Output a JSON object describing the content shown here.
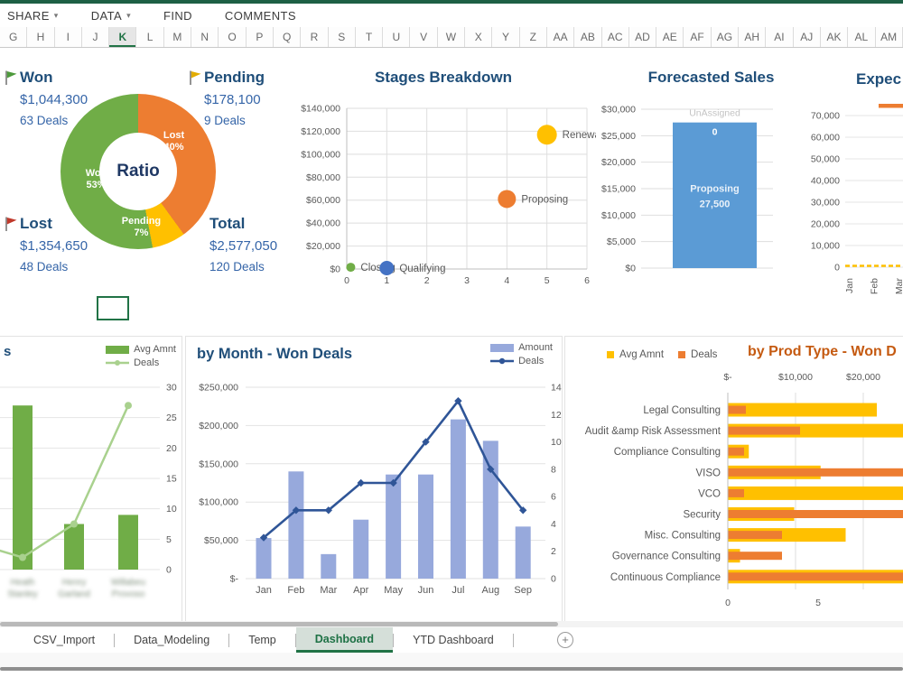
{
  "window": {
    "top_accent_color": "#1E6045"
  },
  "menu": {
    "items": [
      {
        "label": "SHARE",
        "has_dropdown": true
      },
      {
        "label": "DATA",
        "has_dropdown": true
      },
      {
        "label": "FIND",
        "has_dropdown": false
      },
      {
        "label": "COMMENTS",
        "has_dropdown": false
      }
    ]
  },
  "column_headers": {
    "letters": [
      "G",
      "H",
      "I",
      "J",
      "K",
      "L",
      "M",
      "N",
      "O",
      "P",
      "Q",
      "R",
      "S",
      "T",
      "U",
      "V",
      "W",
      "X",
      "Y",
      "Z",
      "AA",
      "AB",
      "AC",
      "AD",
      "AE",
      "AF",
      "AG",
      "AH",
      "AI",
      "AJ",
      "AK",
      "AL",
      "AM"
    ],
    "selected": "K"
  },
  "kpis": {
    "won": {
      "label": "Won",
      "amount": "$1,044,300",
      "deals": "63 Deals",
      "flag_color": "#4E9A3C"
    },
    "pending": {
      "label": "Pending",
      "amount": "$178,100",
      "deals": "9 Deals",
      "flag_color": "#E2AC00"
    },
    "lost": {
      "label": "Lost",
      "amount": "$1,354,650",
      "deals": "48 Deals",
      "flag_color": "#C0392B"
    },
    "total": {
      "label": "Total",
      "amount": "$2,577,050",
      "deals": "120 Deals"
    }
  },
  "chart_data": [
    {
      "name": "ratio-donut",
      "type": "pie",
      "title": "Ratio",
      "slices": [
        {
          "label": "Lost",
          "pct": 40,
          "color": "#ED7D31"
        },
        {
          "label": "Pending",
          "pct": 7,
          "color": "#FFC000"
        },
        {
          "label": "Won",
          "pct": 53,
          "color": "#70AD47"
        }
      ]
    },
    {
      "name": "stages-breakdown",
      "type": "scatter",
      "title": "Stages Breakdown",
      "xlim": [
        0,
        6
      ],
      "xticks": [
        0,
        1,
        2,
        3,
        4,
        5,
        6
      ],
      "ylim": [
        0,
        140000
      ],
      "ytick_step": 20000,
      "yticks": [
        "$0",
        "$20,000",
        "$40,000",
        "$60,000",
        "$80,000",
        "$100,000",
        "$120,000",
        "$140,000"
      ],
      "points": [
        {
          "label": "Closing",
          "x": 0.1,
          "y": 1500,
          "color": "#70AD47",
          "r": 5
        },
        {
          "label": "Qualifying",
          "x": 1,
          "y": 800,
          "color": "#4472C4",
          "r": 8
        },
        {
          "label": "Proposing",
          "x": 4,
          "y": 61000,
          "color": "#ED7D31",
          "r": 10
        },
        {
          "label": "Renewal",
          "x": 5,
          "y": 117000,
          "color": "#FFC000",
          "r": 11
        }
      ]
    },
    {
      "name": "forecasted-sales",
      "type": "stacked-bar",
      "title": "Forecasted Sales",
      "ylim": [
        0,
        30000
      ],
      "ytick_step": 5000,
      "yticks": [
        "$0",
        "$5,000",
        "$10,000",
        "$15,000",
        "$20,000",
        "$25,000",
        "$30,000"
      ],
      "segments": [
        {
          "label": "Proposing",
          "value": 27500,
          "value_label": "27,500",
          "color": "#5B9BD5"
        },
        {
          "label": "UnAssigned",
          "value": 0,
          "value_label": "0"
        }
      ]
    },
    {
      "name": "expected-sales",
      "type": "line",
      "title": "Expec",
      "ylim": [
        0,
        70000
      ],
      "ytick_step": 10000,
      "yticks": [
        "0",
        "10,000",
        "20,000",
        "30,000",
        "40,000",
        "50,000",
        "60,000",
        "70,000"
      ],
      "x_labels": [
        "Jan",
        "Feb",
        "Mar"
      ],
      "series": [
        {
          "name": "orange-series",
          "color": "#ED7D31"
        },
        {
          "name": "yellow-series",
          "color": "#FFC000",
          "dashed": true,
          "value_near": 500
        }
      ]
    },
    {
      "name": "by-rep-won-deals",
      "type": "bar-line",
      "title_fragment": "s",
      "legend": [
        {
          "label": "Avg Amnt",
          "color": "#70AD47",
          "kind": "bar"
        },
        {
          "label": "Deals",
          "color": "#A9D18E",
          "kind": "line"
        }
      ],
      "ylim": [
        0,
        30
      ],
      "yticks": [
        0,
        5,
        10,
        15,
        20,
        25,
        30
      ],
      "categories": [
        "Heath Stanley",
        "Henry Garland",
        "Willabeu Provoso"
      ],
      "categories_blurred": true,
      "bar_values": [
        27,
        7.5,
        9
      ],
      "line_values": [
        2,
        7.5,
        27
      ],
      "line_entry_value": 5
    },
    {
      "name": "by-month-won-deals",
      "type": "bar-line",
      "title": "by Month - Won Deals",
      "legend": [
        {
          "label": "Amount",
          "color": "#97A9DC",
          "kind": "bar"
        },
        {
          "label": "Deals",
          "color": "#2F5597",
          "kind": "line"
        }
      ],
      "categories": [
        "Jan",
        "Feb",
        "Mar",
        "Apr",
        "May",
        "Jun",
        "Jul",
        "Aug",
        "Sep"
      ],
      "bar_values": [
        53000,
        140000,
        32000,
        77000,
        136000,
        136000,
        208000,
        180000,
        68000
      ],
      "line_values": [
        3,
        5,
        5,
        7,
        7,
        10,
        13,
        8,
        5
      ],
      "ylim_left": [
        0,
        250000
      ],
      "yticks_left": [
        "$-",
        "$50,000",
        "$100,000",
        "$150,000",
        "$200,000",
        "$250,000"
      ],
      "ylim_right": [
        0,
        14
      ],
      "yticks_right": [
        0,
        2,
        4,
        6,
        8,
        10,
        12,
        14
      ]
    },
    {
      "name": "by-prod-type-won-deals",
      "type": "hbar",
      "title": "by Prod Type - Won D",
      "legend": [
        {
          "label": "Avg Amnt",
          "color": "#FFC000"
        },
        {
          "label": "Deals",
          "color": "#ED7D31"
        }
      ],
      "top_axis_ticks": [
        "$-",
        "$10,000",
        "$20,000"
      ],
      "bottom_axis_ticks": [
        "0",
        "5"
      ],
      "categories": [
        "Legal Consulting",
        "Audit &amp Risk Assessment",
        "Compliance Consulting",
        "VISO",
        "VCO",
        "Security",
        "Misc. Consulting",
        "Governance Consulting",
        "Continuous Compliance"
      ],
      "avg_amnt": [
        22000,
        27500,
        3100,
        13700,
        27000,
        9800,
        17400,
        1800,
        27500
      ],
      "deals": [
        1,
        4,
        0.9,
        11,
        0.9,
        11,
        3,
        3,
        11
      ]
    }
  ],
  "sheet_bar": {
    "tabs": [
      {
        "label": "CSV_Import",
        "active": false
      },
      {
        "label": "Data_Modeling",
        "active": false
      },
      {
        "label": "Temp",
        "active": false
      },
      {
        "label": "Dashboard",
        "active": true
      },
      {
        "label": "YTD Dashboard",
        "active": false
      }
    ],
    "add_sheet_label": "+"
  }
}
